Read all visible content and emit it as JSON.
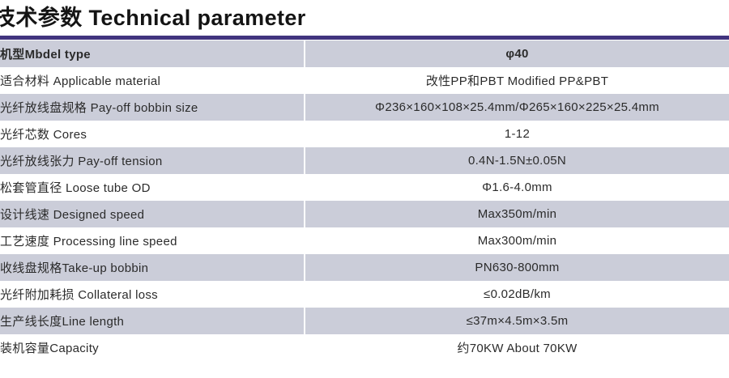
{
  "title": "技术参数 Technical parameter",
  "colors": {
    "accent_rule": "#41347f",
    "alt_row_background": "#cbcdd9",
    "column_divider": "#ffffff",
    "text": "#2b2b2b"
  },
  "table": {
    "rows": [
      {
        "label": "机型Mbdel type",
        "value": "φ40",
        "bold": true
      },
      {
        "label": "适合材料 Applicable material",
        "value": "改性PP和PBT Modified PP&PBT"
      },
      {
        "label": "光纤放线盘规格 Pay-off bobbin size",
        "value": "Φ236×160×108×25.4mm/Φ265×160×225×25.4mm"
      },
      {
        "label": "光纤芯数 Cores",
        "value": "1-12"
      },
      {
        "label": "光纤放线张力 Pay-off tension",
        "value": "0.4N-1.5N±0.05N"
      },
      {
        "label": "松套管直径 Loose tube OD",
        "value": "Φ1.6-4.0mm"
      },
      {
        "label": "设计线速 Designed speed",
        "value": "Max350m/min"
      },
      {
        "label": "工艺速度 Processing line speed",
        "value": "Max300m/min"
      },
      {
        "label": "收线盘规格Take-up bobbin",
        "value": "PN630-800mm"
      },
      {
        "label": "光纤附加耗损 Collateral loss",
        "value": "≤0.02dB/km"
      },
      {
        "label": "生产线长度Line length",
        "value": "≤37m×4.5m×3.5m"
      },
      {
        "label": "装机容量Capacity",
        "value": "约70KW About 70KW"
      }
    ]
  }
}
